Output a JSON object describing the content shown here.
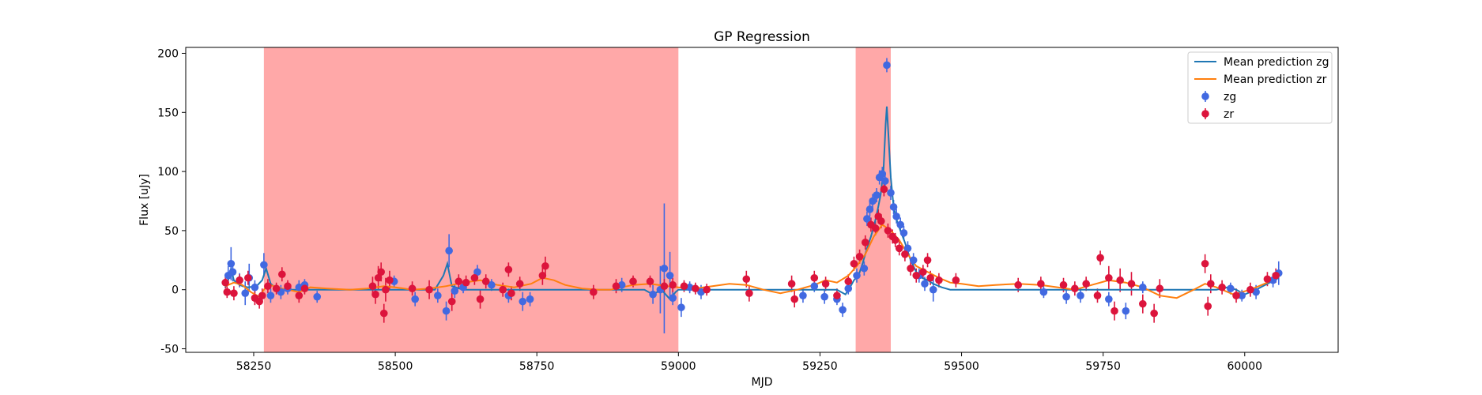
{
  "chart_data": {
    "type": "scatter",
    "title": "GP Regression",
    "xlabel": "MJD",
    "ylabel": "Flux [uJy]",
    "xlim": [
      58130,
      60165
    ],
    "ylim": [
      -53,
      205
    ],
    "xticks": [
      58250,
      58500,
      58750,
      59000,
      59250,
      59500,
      59750,
      60000
    ],
    "yticks": [
      -50,
      0,
      50,
      100,
      150,
      200
    ],
    "legend_position": "top-right",
    "grid": false,
    "shaded_regions": [
      {
        "x0": 58268,
        "x1": 59000,
        "color": "#ff0000",
        "alpha": 0.34
      },
      {
        "x0": 59313,
        "x1": 59375,
        "color": "#ff0000",
        "alpha": 0.34
      }
    ],
    "lines": [
      {
        "name": "Mean prediction zg",
        "color": "#1f77b4",
        "x": [
          58200,
          58205,
          58210,
          58215,
          58222,
          58230,
          58240,
          58255,
          58265,
          58272,
          58280,
          58290,
          58300,
          58320,
          58350,
          58400,
          58450,
          58500,
          58550,
          58570,
          58585,
          58592,
          58600,
          58620,
          58650,
          58700,
          58750,
          58800,
          58850,
          58900,
          58940,
          58955,
          58970,
          58985,
          58995,
          59000,
          59010,
          59030,
          59050,
          59100,
          59150,
          59200,
          59250,
          59280,
          59295,
          59303,
          59310,
          59318,
          59325,
          59333,
          59340,
          59346,
          59352,
          59357,
          59362,
          59366,
          59368,
          59371,
          59375,
          59380,
          59386,
          59392,
          59400,
          59410,
          59420,
          59430,
          59440,
          59450,
          59465,
          59480,
          59500,
          59550,
          59600,
          59650,
          59700,
          59750,
          59800,
          59850,
          59900,
          59950,
          59970,
          59985,
          60000,
          60020,
          60040,
          60060
        ],
        "y": [
          2,
          8,
          18,
          8,
          5,
          3,
          2,
          3,
          8,
          18,
          5,
          1,
          0,
          0,
          0,
          0,
          0,
          0,
          0,
          0,
          12,
          22,
          3,
          0,
          0,
          0,
          0,
          0,
          0,
          0,
          0,
          -4,
          0,
          -8,
          -2,
          0,
          0,
          0,
          0,
          0,
          0,
          0,
          0,
          0,
          -4,
          2,
          8,
          12,
          22,
          35,
          45,
          55,
          68,
          80,
          100,
          140,
          155,
          130,
          95,
          70,
          58,
          50,
          40,
          25,
          15,
          10,
          8,
          5,
          2,
          0,
          0,
          0,
          0,
          0,
          0,
          0,
          0,
          0,
          0,
          0,
          2,
          0,
          -4,
          0,
          5,
          10
        ]
      },
      {
        "name": "Mean prediction zr",
        "color": "#ff7f0e",
        "x": [
          58200,
          58215,
          58230,
          58245,
          58260,
          58275,
          58290,
          58310,
          58330,
          58350,
          58380,
          58420,
          58450,
          58480,
          58500,
          58530,
          58560,
          58590,
          58620,
          58650,
          58680,
          58710,
          58740,
          58760,
          58780,
          58800,
          58830,
          58860,
          58880,
          58900,
          58920,
          58950,
          58980,
          59000,
          59030,
          59060,
          59090,
          59120,
          59150,
          59180,
          59210,
          59240,
          59260,
          59280,
          59300,
          59315,
          59330,
          59345,
          59360,
          59375,
          59390,
          59405,
          59420,
          59440,
          59460,
          59480,
          59500,
          59530,
          59560,
          59600,
          59640,
          59670,
          59700,
          59730,
          59760,
          59790,
          59820,
          59850,
          59880,
          59910,
          59930,
          59950,
          59980,
          60010,
          60040,
          60060
        ],
        "y": [
          3,
          6,
          4,
          -2,
          -6,
          5,
          2,
          0,
          -2,
          2,
          1,
          0,
          1,
          3,
          2,
          0,
          1,
          3,
          6,
          8,
          4,
          2,
          5,
          10,
          8,
          4,
          1,
          0,
          0,
          2,
          4,
          5,
          3,
          2,
          1,
          3,
          5,
          4,
          0,
          -3,
          0,
          4,
          8,
          6,
          12,
          20,
          30,
          45,
          55,
          50,
          42,
          30,
          20,
          15,
          10,
          6,
          5,
          3,
          4,
          5,
          4,
          2,
          0,
          4,
          8,
          6,
          2,
          -5,
          -7,
          0,
          5,
          2,
          -4,
          0,
          6,
          12
        ]
      }
    ],
    "series": [
      {
        "name": "zg",
        "color": "#4169e1",
        "points": [
          [
            58205,
            12,
            8
          ],
          [
            58210,
            22,
            14
          ],
          [
            58213,
            15,
            8
          ],
          [
            58225,
            8,
            6
          ],
          [
            58235,
            -3,
            10
          ],
          [
            58242,
            10,
            12
          ],
          [
            58252,
            2,
            6
          ],
          [
            58268,
            21,
            10
          ],
          [
            58280,
            -5,
            6
          ],
          [
            58298,
            -2,
            6
          ],
          [
            58310,
            1,
            5
          ],
          [
            58330,
            2,
            6
          ],
          [
            58340,
            4,
            5
          ],
          [
            58362,
            -6,
            5
          ],
          [
            58498,
            7,
            5
          ],
          [
            58535,
            -8,
            6
          ],
          [
            58575,
            -5,
            6
          ],
          [
            58590,
            -18,
            8
          ],
          [
            58595,
            33,
            14
          ],
          [
            58605,
            -1,
            6
          ],
          [
            58620,
            2,
            5
          ],
          [
            58645,
            15,
            6
          ],
          [
            58670,
            4,
            5
          ],
          [
            58700,
            -5,
            6
          ],
          [
            58725,
            -10,
            8
          ],
          [
            58738,
            -8,
            6
          ],
          [
            58900,
            4,
            6
          ],
          [
            58955,
            -4,
            8
          ],
          [
            58968,
            0,
            20
          ],
          [
            58975,
            18,
            55
          ],
          [
            58985,
            12,
            20
          ],
          [
            58990,
            -7,
            6
          ],
          [
            59005,
            -15,
            8
          ],
          [
            59020,
            2,
            5
          ],
          [
            59040,
            -2,
            6
          ],
          [
            59220,
            -5,
            6
          ],
          [
            59240,
            3,
            5
          ],
          [
            59258,
            -6,
            6
          ],
          [
            59280,
            -8,
            5
          ],
          [
            59290,
            -17,
            6
          ],
          [
            59300,
            1,
            5
          ],
          [
            59315,
            12,
            6
          ],
          [
            59328,
            18,
            6
          ],
          [
            59333,
            60,
            6
          ],
          [
            59338,
            68,
            6
          ],
          [
            59343,
            75,
            6
          ],
          [
            59350,
            80,
            6
          ],
          [
            59355,
            95,
            6
          ],
          [
            59360,
            98,
            6
          ],
          [
            59365,
            92,
            6
          ],
          [
            59368,
            190,
            6
          ],
          [
            59375,
            82,
            6
          ],
          [
            59380,
            70,
            6
          ],
          [
            59385,
            62,
            6
          ],
          [
            59392,
            55,
            6
          ],
          [
            59398,
            48,
            6
          ],
          [
            59405,
            35,
            6
          ],
          [
            59415,
            25,
            6
          ],
          [
            59425,
            12,
            6
          ],
          [
            59435,
            5,
            6
          ],
          [
            59450,
            0,
            10
          ],
          [
            59645,
            -2,
            5
          ],
          [
            59685,
            -6,
            6
          ],
          [
            59710,
            -5,
            6
          ],
          [
            59760,
            -8,
            6
          ],
          [
            59790,
            -18,
            7
          ],
          [
            59820,
            2,
            5
          ],
          [
            59975,
            1,
            5
          ],
          [
            59995,
            -5,
            5
          ],
          [
            60020,
            -2,
            6
          ],
          [
            60050,
            8,
            6
          ],
          [
            60060,
            14,
            10
          ]
        ]
      },
      {
        "name": "zr",
        "color": "#dc143c",
        "points": [
          [
            58200,
            6,
            5
          ],
          [
            58203,
            -2,
            5
          ],
          [
            58215,
            -3,
            6
          ],
          [
            58225,
            8,
            5
          ],
          [
            58240,
            10,
            6
          ],
          [
            58252,
            -7,
            6
          ],
          [
            58260,
            -10,
            6
          ],
          [
            58265,
            -5,
            6
          ],
          [
            58275,
            3,
            6
          ],
          [
            58290,
            1,
            5
          ],
          [
            58300,
            13,
            6
          ],
          [
            58310,
            3,
            5
          ],
          [
            58330,
            -5,
            6
          ],
          [
            58340,
            1,
            5
          ],
          [
            58460,
            3,
            8
          ],
          [
            58465,
            -4,
            8
          ],
          [
            58470,
            10,
            10
          ],
          [
            58475,
            15,
            8
          ],
          [
            58480,
            -20,
            8
          ],
          [
            58483,
            0,
            10
          ],
          [
            58490,
            8,
            8
          ],
          [
            58530,
            1,
            6
          ],
          [
            58560,
            0,
            8
          ],
          [
            58600,
            -10,
            8
          ],
          [
            58612,
            7,
            6
          ],
          [
            58625,
            6,
            6
          ],
          [
            58640,
            10,
            6
          ],
          [
            58650,
            -8,
            8
          ],
          [
            58660,
            7,
            6
          ],
          [
            58690,
            0,
            6
          ],
          [
            58700,
            17,
            6
          ],
          [
            58705,
            -3,
            6
          ],
          [
            58720,
            5,
            6
          ],
          [
            58760,
            12,
            8
          ],
          [
            58765,
            20,
            8
          ],
          [
            58850,
            -2,
            6
          ],
          [
            58890,
            3,
            6
          ],
          [
            58920,
            7,
            5
          ],
          [
            58950,
            7,
            5
          ],
          [
            58975,
            3,
            6
          ],
          [
            58990,
            4,
            6
          ],
          [
            59010,
            3,
            5
          ],
          [
            59030,
            1,
            5
          ],
          [
            59050,
            0,
            5
          ],
          [
            59120,
            9,
            7
          ],
          [
            59125,
            -3,
            7
          ],
          [
            59200,
            5,
            7
          ],
          [
            59205,
            -8,
            7
          ],
          [
            59240,
            10,
            6
          ],
          [
            59260,
            5,
            6
          ],
          [
            59280,
            -5,
            6
          ],
          [
            59300,
            7,
            6
          ],
          [
            59310,
            22,
            6
          ],
          [
            59320,
            28,
            6
          ],
          [
            59330,
            40,
            6
          ],
          [
            59340,
            55,
            6
          ],
          [
            59348,
            52,
            6
          ],
          [
            59353,
            62,
            6
          ],
          [
            59358,
            58,
            6
          ],
          [
            59363,
            85,
            6
          ],
          [
            59370,
            50,
            6
          ],
          [
            59378,
            45,
            6
          ],
          [
            59383,
            42,
            6
          ],
          [
            59390,
            35,
            6
          ],
          [
            59400,
            30,
            6
          ],
          [
            59410,
            18,
            6
          ],
          [
            59420,
            12,
            6
          ],
          [
            59432,
            15,
            6
          ],
          [
            59440,
            25,
            6
          ],
          [
            59445,
            10,
            6
          ],
          [
            59460,
            8,
            6
          ],
          [
            59490,
            8,
            6
          ],
          [
            59600,
            4,
            6
          ],
          [
            59640,
            5,
            6
          ],
          [
            59680,
            4,
            6
          ],
          [
            59700,
            1,
            6
          ],
          [
            59720,
            5,
            6
          ],
          [
            59740,
            -5,
            6
          ],
          [
            59745,
            27,
            6
          ],
          [
            59760,
            10,
            10
          ],
          [
            59770,
            -18,
            8
          ],
          [
            59780,
            8,
            10
          ],
          [
            59800,
            5,
            10
          ],
          [
            59820,
            -12,
            8
          ],
          [
            59840,
            -20,
            8
          ],
          [
            59850,
            1,
            8
          ],
          [
            59930,
            22,
            8
          ],
          [
            59935,
            -14,
            8
          ],
          [
            59940,
            5,
            8
          ],
          [
            59960,
            2,
            6
          ],
          [
            59985,
            -5,
            6
          ],
          [
            60010,
            0,
            6
          ],
          [
            60040,
            9,
            6
          ],
          [
            60055,
            12,
            6
          ]
        ]
      }
    ]
  }
}
